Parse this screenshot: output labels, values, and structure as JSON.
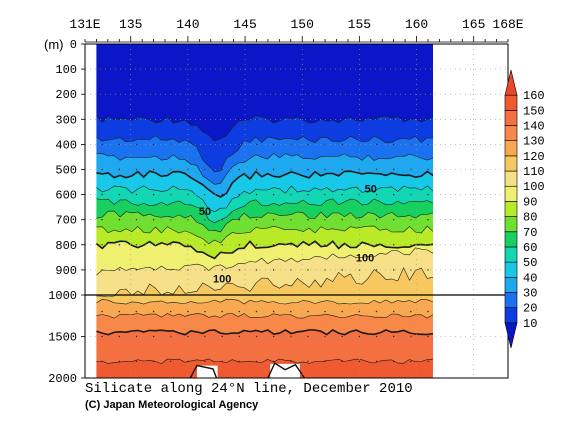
{
  "chart_data": {
    "type": "heatmap",
    "title": "Silicate along 24°N line, December 2010",
    "credit": "(C) Japan Meteorological Agency",
    "ylabel": "(m)",
    "x_ticks": [
      {
        "v": 131,
        "label": "131E"
      },
      {
        "v": 135,
        "label": "135"
      },
      {
        "v": 140,
        "label": "140"
      },
      {
        "v": 145,
        "label": "145"
      },
      {
        "v": 150,
        "label": "150"
      },
      {
        "v": 155,
        "label": "155"
      },
      {
        "v": 160,
        "label": "160"
      },
      {
        "v": 165,
        "label": "165"
      },
      {
        "v": 168,
        "label": "168E"
      }
    ],
    "y_ticks_upper": [
      0,
      100,
      200,
      300,
      400,
      500,
      600,
      700,
      800,
      900,
      1000
    ],
    "y_ticks_lower": [
      1500,
      2000
    ],
    "xlim": [
      131,
      168
    ],
    "ylim": [
      0,
      2000
    ],
    "data_xlim": [
      132,
      163
    ],
    "grid": "dotted",
    "colorbar": {
      "levels": [
        10,
        20,
        30,
        40,
        50,
        60,
        70,
        80,
        90,
        100,
        110,
        120,
        130,
        140,
        150,
        160
      ],
      "colors": [
        "#0a16c8",
        "#0d3ce0",
        "#1a72f0",
        "#1ea8f0",
        "#18c8e8",
        "#10d8b4",
        "#18d060",
        "#70e030",
        "#b8ea28",
        "#f0f070",
        "#f6e088",
        "#f8c860",
        "#f8a850",
        "#f88848",
        "#f47040",
        "#f05a30",
        "#e84828"
      ]
    },
    "contour_labels": [
      {
        "text": "50",
        "x": 141.5,
        "depth": 665
      },
      {
        "text": "50",
        "x": 156.0,
        "depth": 575
      },
      {
        "text": "100",
        "x": 143.0,
        "depth": 935
      },
      {
        "text": "100",
        "x": 155.5,
        "depth": 850
      }
    ]
  }
}
